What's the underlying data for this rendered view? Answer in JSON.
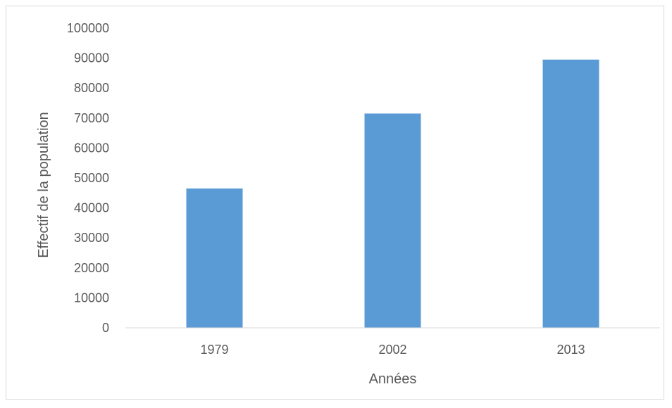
{
  "chart_data": {
    "type": "bar",
    "title": "",
    "xlabel": "Années",
    "ylabel": "Effectif de la population",
    "categories": [
      "1979",
      "2002",
      "2013"
    ],
    "values": [
      46500,
      71500,
      89500
    ],
    "ylim": [
      0,
      100000
    ],
    "yticks": [
      0,
      10000,
      20000,
      30000,
      40000,
      50000,
      60000,
      70000,
      80000,
      90000,
      100000
    ],
    "grid": false,
    "legend": "none",
    "colors": {
      "bar": "#5b9bd5",
      "axis": "#d9d9d9",
      "text": "#595959"
    }
  }
}
